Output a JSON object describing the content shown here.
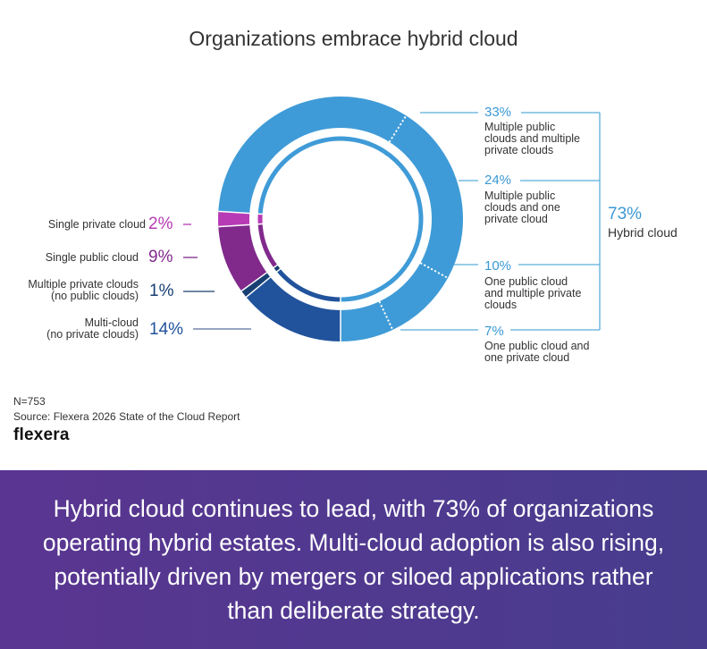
{
  "title": "Organizations embrace hybrid cloud",
  "colors": {
    "hybrid": "#3f9bd7",
    "single_private": "#b73bb5",
    "single_public": "#812a8c",
    "multiple_private": "#173f72",
    "multi_cloud": "#21539c",
    "bracket": "#5aaddb",
    "banner": "#523890"
  },
  "chart_data": {
    "type": "pie",
    "title": "Organizations embrace hybrid cloud",
    "style": "donut",
    "segments": [
      {
        "key": "multi_cloud",
        "label": "Multi-cloud (no private clouds)",
        "label_lines": [
          "Multi-cloud",
          "(no private clouds)"
        ],
        "value": 14,
        "display": "14%",
        "group": "non-hybrid"
      },
      {
        "key": "multiple_private",
        "label": "Multiple private clouds (no public clouds)",
        "label_lines": [
          "Multiple private clouds",
          "(no public clouds)"
        ],
        "value": 1,
        "display": "1%",
        "group": "non-hybrid"
      },
      {
        "key": "single_public",
        "label": "Single public cloud",
        "label_lines": [
          "Single public cloud"
        ],
        "value": 9,
        "display": "9%",
        "group": "non-hybrid"
      },
      {
        "key": "single_private",
        "label": "Single private cloud",
        "label_lines": [
          "Single private cloud"
        ],
        "value": 2,
        "display": "2%",
        "group": "non-hybrid"
      },
      {
        "key": "hybrid_33",
        "label": "Multiple public clouds and multiple private clouds",
        "label_lines": [
          "Multiple public",
          "clouds and multiple",
          "private clouds"
        ],
        "value": 33,
        "display": "33%",
        "group": "hybrid"
      },
      {
        "key": "hybrid_24",
        "label": "Multiple public clouds and one private cloud",
        "label_lines": [
          "Multiple public",
          "clouds and one",
          "private cloud"
        ],
        "value": 24,
        "display": "24%",
        "group": "hybrid"
      },
      {
        "key": "hybrid_10",
        "label": "One public cloud and multiple private clouds",
        "label_lines": [
          "One public cloud",
          "and multiple private",
          "clouds"
        ],
        "value": 10,
        "display": "10%",
        "group": "hybrid"
      },
      {
        "key": "hybrid_7",
        "label": "One public cloud and one private cloud",
        "label_lines": [
          "One public cloud and",
          "one private cloud"
        ],
        "value": 7,
        "display": "7%",
        "group": "hybrid"
      }
    ],
    "group_total": {
      "label": "Hybrid cloud",
      "value": 73,
      "display": "73%"
    },
    "legend": "none"
  },
  "footer": {
    "sample": "N=753",
    "source": "Source: Flexera 2026 State of the Cloud Report",
    "logo": "flexera"
  },
  "banner": {
    "text": "Hybrid cloud continues to lead, with 73% of organizations operating hybrid estates. Multi-cloud adoption is also rising, potentially driven by mergers or siloed applications rather than deliberate strategy."
  }
}
